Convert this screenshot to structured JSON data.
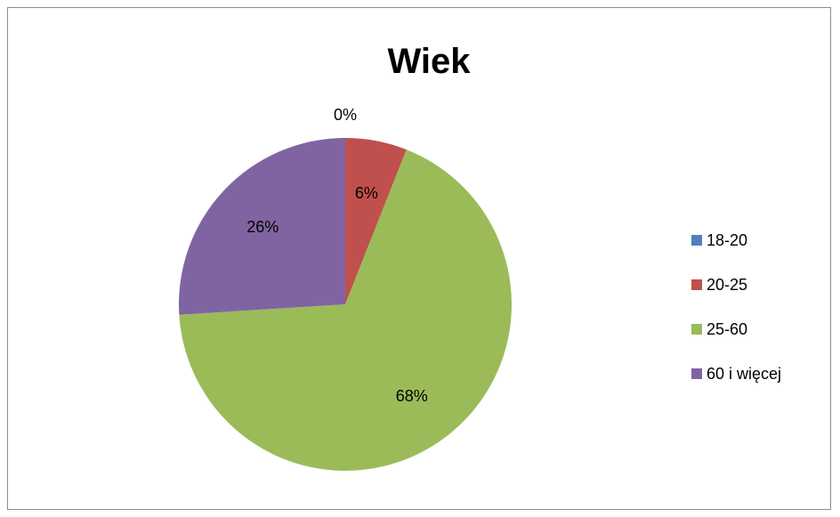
{
  "chart_data": {
    "type": "pie",
    "title": "Wiek",
    "categories": [
      "18-20",
      "20-25",
      "25-60",
      "60 i więcej"
    ],
    "values": [
      0,
      6,
      68,
      26
    ],
    "data_labels": [
      "0%",
      "6%",
      "68%",
      "26%"
    ],
    "colors": [
      "#4F81BD",
      "#C0504D",
      "#9BBB59",
      "#8064A2"
    ],
    "legend": "right",
    "start_angle_deg": 0,
    "direction": "clockwise"
  }
}
